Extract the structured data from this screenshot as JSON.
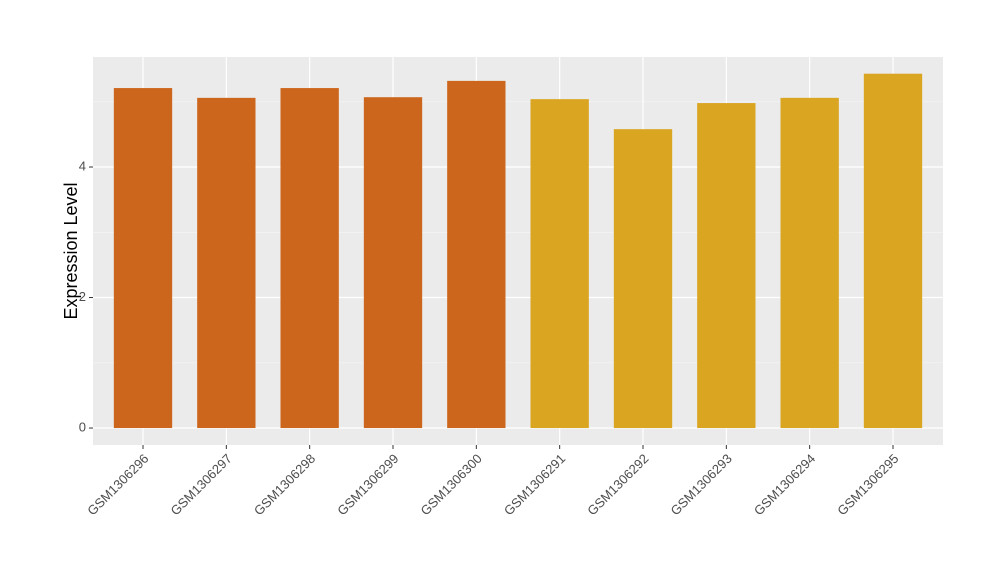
{
  "chart_data": {
    "type": "bar",
    "y_label": "Expression Level",
    "categories": [
      "GSM1306296",
      "GSM1306297",
      "GSM1306298",
      "GSM1306299",
      "GSM1306300",
      "GSM1306291",
      "GSM1306292",
      "GSM1306293",
      "GSM1306294",
      "GSM1306295"
    ],
    "values": [
      5.21,
      5.06,
      5.21,
      5.07,
      5.32,
      5.04,
      4.58,
      4.98,
      5.06,
      5.43
    ],
    "colors": [
      "#cd661d",
      "#cd661d",
      "#cd661d",
      "#cd661d",
      "#cd661d",
      "#daa520",
      "#daa520",
      "#daa520",
      "#daa520",
      "#daa520"
    ],
    "ylim": [
      -0.26,
      5.686
    ],
    "yticks": [
      0,
      2,
      4
    ],
    "minor_yticks": [
      1,
      3,
      5
    ],
    "grid": true
  }
}
